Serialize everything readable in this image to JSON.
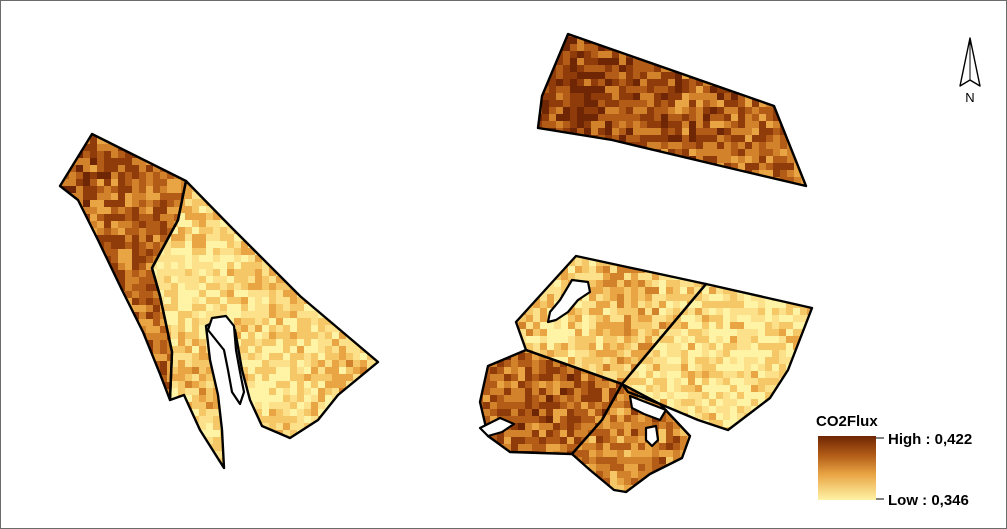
{
  "legend": {
    "title": "CO2Flux",
    "high_label": "High : 0,422",
    "low_label": "Low : 0,346",
    "high_value": 0.422,
    "low_value": 0.346,
    "high_color": "#7a2a05",
    "low_color": "#fff0a0"
  },
  "north_arrow": {
    "label": "N",
    "icon": "north-arrow-icon"
  },
  "colors": {
    "field_outline": "#000000",
    "frame_border": "#6b6b6b",
    "ramp": [
      "#fff3a6",
      "#fde08a",
      "#f6c766",
      "#e9a544",
      "#d2822a",
      "#b25c17",
      "#8f3c0a",
      "#6f2604"
    ]
  }
}
